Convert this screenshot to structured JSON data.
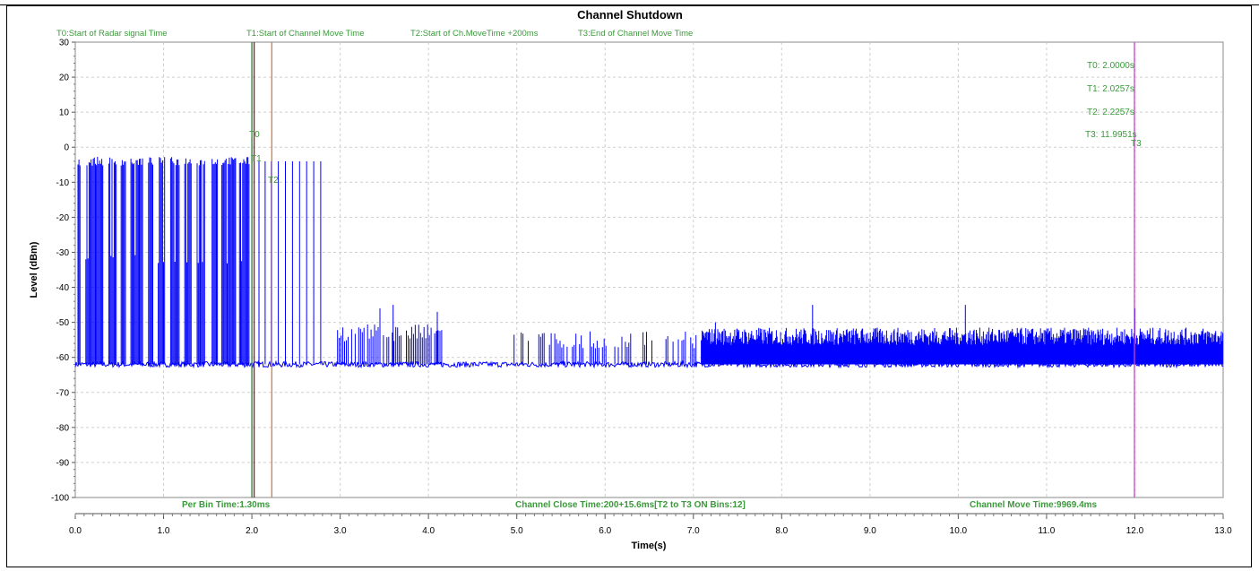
{
  "chart_data": {
    "type": "line",
    "title": "Channel Shutdown",
    "xlabel": "Time(s)",
    "ylabel": "Level (dBm)",
    "xlim": [
      0.0,
      13.0
    ],
    "ylim": [
      -100,
      30
    ],
    "x_ticks": [
      "0.0",
      "1.0",
      "2.0",
      "3.0",
      "4.0",
      "5.0",
      "6.0",
      "7.0",
      "8.0",
      "9.0",
      "10.0",
      "11.0",
      "12.0",
      "13.0"
    ],
    "y_ticks": [
      "30",
      "20",
      "10",
      "0",
      "-10",
      "-20",
      "-30",
      "-40",
      "-50",
      "-60",
      "-70",
      "-80",
      "-90",
      "-100"
    ],
    "grid": true,
    "legend_items": [
      "T0:Start of Radar signal Time",
      "T1:Start of Channel Move Time",
      "T2:Start of Ch.MoveTime +200ms",
      "T3:End of Channel Move Time"
    ],
    "markers": [
      {
        "name": "T0",
        "x": 2.0,
        "color": "#2e7d32"
      },
      {
        "name": "T1",
        "x": 2.0257,
        "color": "#8b1a1a"
      },
      {
        "name": "T2",
        "x": 2.2257,
        "color": "#e07b39"
      },
      {
        "name": "T3",
        "x": 11.9951,
        "color": "#d63fd6"
      }
    ],
    "marker_values": [
      "T0: 2.0000s",
      "T1: 2.0257s",
      "T2: 2.2257s",
      "T3: 11.9951s"
    ],
    "series": [
      {
        "color": "#0000ff",
        "noise_floor": -62,
        "pulse_top": -4,
        "bursts": [
          [
            0.03,
            0.06
          ],
          [
            0.12,
            0.32
          ],
          [
            0.38,
            0.47
          ],
          [
            0.52,
            0.57
          ],
          [
            0.63,
            0.77
          ],
          [
            0.83,
            0.88
          ],
          [
            0.94,
            1.02
          ],
          [
            1.08,
            1.18
          ],
          [
            1.24,
            1.32
          ],
          [
            1.38,
            1.47
          ],
          [
            1.55,
            1.62
          ],
          [
            1.66,
            1.82
          ],
          [
            1.86,
            1.97
          ]
        ],
        "single_pulses": [
          2.08,
          2.15,
          2.22,
          2.3,
          2.38,
          2.46,
          2.54,
          2.62,
          2.7,
          2.78
        ],
        "activity_segments": [
          {
            "start": 2.95,
            "end": 4.2,
            "level": -53
          },
          {
            "start": 4.95,
            "end": 7.1,
            "level": -55
          },
          {
            "start": 7.1,
            "end": 13.0,
            "level": -54
          }
        ],
        "spikes": [
          [
            3.45,
            -46
          ],
          [
            3.6,
            -45
          ],
          [
            4.1,
            -47
          ],
          [
            7.25,
            -50
          ],
          [
            8.35,
            -45
          ],
          [
            10.08,
            -45
          ],
          [
            12.0,
            -46
          ]
        ]
      }
    ],
    "stats": {
      "per_bin": "Per Bin Time:1.30ms",
      "close_time": "Channel Close Time:200+15.6ms[T2 to T3 ON Bins:12]",
      "move_time": "Channel Move Time:9969.4ms"
    }
  }
}
